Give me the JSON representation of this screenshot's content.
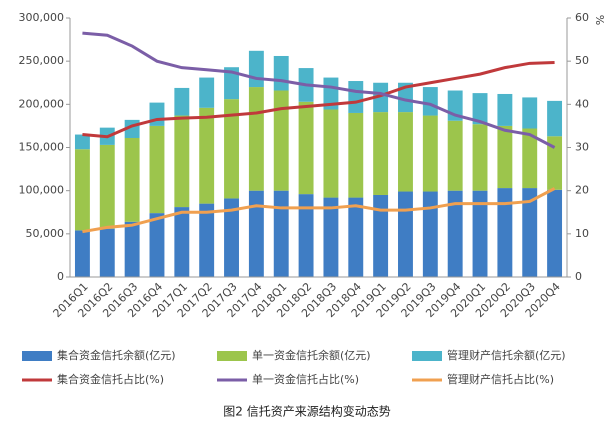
{
  "chart_data": {
    "type": "bar_line",
    "caption": "图2  信托资产来源结构变动态势",
    "categories": [
      "2016Q1",
      "2016Q2",
      "2016Q3",
      "2016Q4",
      "2017Q1",
      "2017Q2",
      "2017Q3",
      "2017Q4",
      "2018Q1",
      "2018Q2",
      "2018Q3",
      "2018Q4",
      "2019Q1",
      "2019Q2",
      "2019Q3",
      "2019Q4",
      "2020Q1",
      "2020Q2",
      "2020Q3",
      "2020Q4"
    ],
    "ylim": [
      0,
      300000
    ],
    "yticks": [
      0,
      {
        "value": 50000,
        "label": "50,000"
      },
      {
        "value": 100000,
        "label": "100,000"
      },
      {
        "value": 150000,
        "label": "150,000"
      },
      {
        "value": 200000,
        "label": "200,000"
      },
      {
        "value": 250000,
        "label": "250,000"
      },
      {
        "value": 300000,
        "label": "300,000"
      }
    ],
    "y2lim": [
      0,
      60
    ],
    "y2ticks": [
      0,
      10,
      20,
      30,
      40,
      50,
      60
    ],
    "y2_unit": "%",
    "series": [
      {
        "name": "集合资金信托余额(亿元)",
        "type": "bar",
        "color": "#3f7dc4",
        "values": [
          54000,
          56000,
          64000,
          74000,
          81000,
          85000,
          91000,
          100000,
          100000,
          96000,
          92000,
          92000,
          95000,
          99000,
          99000,
          100000,
          100000,
          103000,
          103000,
          101000
        ]
      },
      {
        "name": "单一资金信托余额(亿元)",
        "type": "bar",
        "color": "#9cc54c",
        "values": [
          94000,
          97000,
          97000,
          101000,
          106000,
          111000,
          115000,
          120000,
          116000,
          107000,
          102000,
          98000,
          96000,
          92000,
          88000,
          81000,
          77000,
          72000,
          69000,
          62000
        ]
      },
      {
        "name": "管理财产信托余额(亿元)",
        "type": "bar",
        "color": "#4cb4ca",
        "values": [
          17000,
          20000,
          21000,
          27000,
          32000,
          35000,
          37000,
          42000,
          40000,
          39000,
          37000,
          37000,
          34000,
          34000,
          33000,
          35000,
          36000,
          37000,
          36000,
          41000
        ]
      },
      {
        "name": "集合资金信托占比(%)",
        "type": "line",
        "axis": "y2",
        "color": "#c0393b",
        "values": [
          33,
          32.5,
          35,
          36.5,
          36.8,
          37,
          37.5,
          38,
          39,
          39.5,
          40,
          40.5,
          42,
          44,
          45,
          46,
          47,
          48.5,
          49.5,
          49.7
        ]
      },
      {
        "name": "单一资金信托占比(%)",
        "type": "line",
        "axis": "y2",
        "color": "#7b5ea7",
        "values": [
          56.5,
          56,
          53.5,
          50,
          48.5,
          48,
          47.5,
          46,
          45.5,
          44.5,
          44,
          43,
          42.5,
          41,
          40,
          37.5,
          36,
          34,
          33,
          30
        ]
      },
      {
        "name": "管理财产信托占比(%)",
        "type": "line",
        "axis": "y2",
        "color": "#f0a050",
        "values": [
          10.5,
          11.5,
          12,
          13.5,
          15,
          15,
          15.5,
          16.5,
          16,
          16,
          16,
          16.5,
          15.5,
          15.5,
          16,
          17,
          17,
          17,
          17.5,
          20.5
        ]
      }
    ]
  }
}
